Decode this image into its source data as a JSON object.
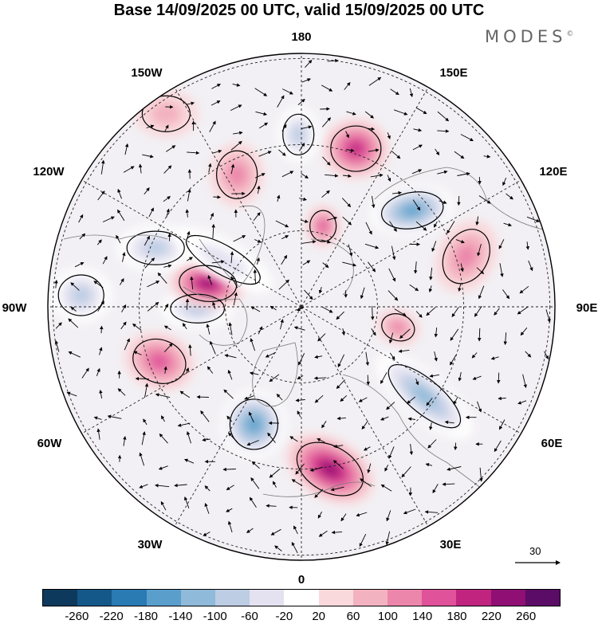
{
  "title": "Base 14/09/2025 00 UTC, valid 15/09/2025 00 UTC",
  "brand": {
    "name": "MODES",
    "mark": "©"
  },
  "lon_labels": {
    "l180": "180",
    "l150e": "150E",
    "l120e": "120E",
    "l90e": "90E",
    "l60e": "60E",
    "l30e": "30E",
    "l0": "0",
    "l30w": "30W",
    "l60w": "60W",
    "l90w": "90W",
    "l120w": "120W",
    "l150w": "150W"
  },
  "vector_scale": {
    "value": "30"
  },
  "colorbar": {
    "colors": [
      "#0d3a5c",
      "#14588a",
      "#2a7ab4",
      "#5a9fcc",
      "#8fbad9",
      "#bccde4",
      "#e4e2f0",
      "#ffffff",
      "#f9d9dc",
      "#f3b2c0",
      "#ec86ab",
      "#e0529a",
      "#c0247f",
      "#8f0f74",
      "#5b0c66"
    ],
    "labels": [
      "-260",
      "-220",
      "-180",
      "-140",
      "-100",
      "-60",
      "-20",
      "20",
      "60",
      "100",
      "140",
      "180",
      "220",
      "260"
    ]
  },
  "anomalies": [
    {
      "name": "blue-anom-1",
      "lon": 131,
      "colat": 0.58,
      "rx": 52,
      "ry": 30,
      "rot": -10,
      "val": -190
    },
    {
      "name": "pink-anom-1",
      "lon": 161,
      "colat": 0.66,
      "rx": 42,
      "ry": 38,
      "rot": 0,
      "val": 170
    },
    {
      "name": "blue-anom-2",
      "lon": -179,
      "colat": 0.68,
      "rx": 26,
      "ry": 34,
      "rot": 0,
      "val": -110
    },
    {
      "name": "pink-anom-2",
      "lon": -154,
      "colat": 0.58,
      "rx": 34,
      "ry": 40,
      "rot": 0,
      "val": 120
    },
    {
      "name": "pink-anom-3",
      "lon": 165,
      "colat": 0.33,
      "rx": 22,
      "ry": 26,
      "rot": 0,
      "val": 160
    },
    {
      "name": "pink-anom-4",
      "lon": 107,
      "colat": 0.68,
      "rx": 48,
      "ry": 36,
      "rot": -60,
      "val": 120
    },
    {
      "name": "pink-anom-5",
      "lon": 78,
      "colat": 0.39,
      "rx": 28,
      "ry": 22,
      "rot": 20,
      "val": 110
    },
    {
      "name": "blue-anom-3",
      "lon": 54,
      "colat": 0.6,
      "rx": 75,
      "ry": 28,
      "rot": 40,
      "val": -140
    },
    {
      "name": "pink-anom-6",
      "lon": 10,
      "colat": 0.65,
      "rx": 60,
      "ry": 38,
      "rot": 30,
      "val": 220
    },
    {
      "name": "blue-anom-4",
      "lon": -22,
      "colat": 0.5,
      "rx": 40,
      "ry": 42,
      "rot": 0,
      "val": -190
    },
    {
      "name": "pink-anom-7",
      "lon": -69,
      "colat": 0.6,
      "rx": 45,
      "ry": 36,
      "rot": 20,
      "val": 150
    },
    {
      "name": "blue-anom-5",
      "lon": -89,
      "colat": 0.41,
      "rx": 45,
      "ry": 24,
      "rot": 0,
      "val": -100
    },
    {
      "name": "pink-anom-8",
      "lon": -104,
      "colat": 0.38,
      "rx": 48,
      "ry": 30,
      "rot": 5,
      "val": 230
    },
    {
      "name": "blue-anom-6",
      "lon": -112,
      "colat": 0.62,
      "rx": 48,
      "ry": 28,
      "rot": 0,
      "val": -90
    },
    {
      "name": "blue-anom-7",
      "lon": -93,
      "colat": 0.87,
      "rx": 38,
      "ry": 34,
      "rot": 0,
      "val": -100
    },
    {
      "name": "blue-anom-8",
      "lon": -121,
      "colat": 0.36,
      "rx": 70,
      "ry": 24,
      "rot": 30,
      "val": -70
    },
    {
      "name": "pink-anom-9",
      "lon": -145,
      "colat": 0.93,
      "rx": 40,
      "ry": 30,
      "rot": 0,
      "val": 50
    }
  ]
}
